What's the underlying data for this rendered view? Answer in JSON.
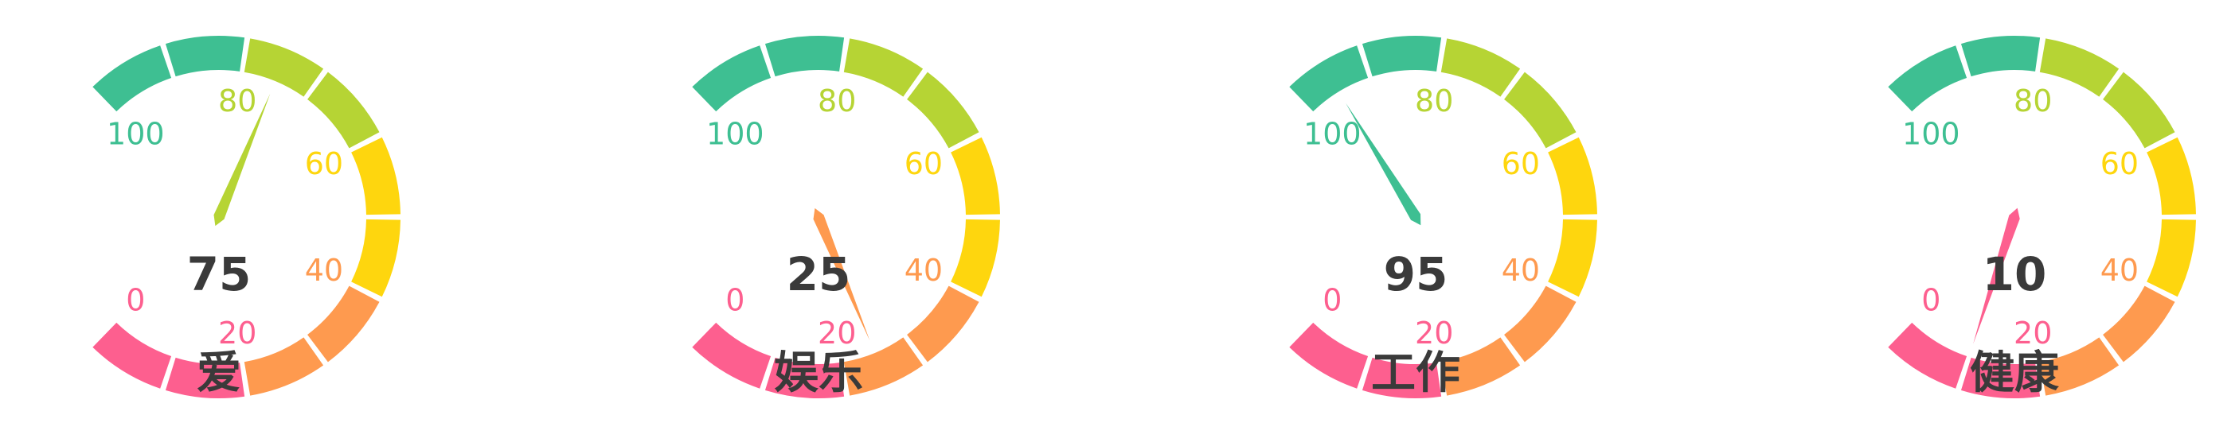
{
  "chart_data": [
    {
      "type": "gauge",
      "label": "爱",
      "value": 75,
      "value_text": "75",
      "range": [
        0,
        100
      ],
      "ticks": [
        "0",
        "20",
        "40",
        "60",
        "80",
        "100"
      ],
      "needle_color": "#b6d434"
    },
    {
      "type": "gauge",
      "label": "娱乐",
      "value": 25,
      "value_text": "25",
      "range": [
        0,
        100
      ],
      "ticks": [
        "0",
        "20",
        "40",
        "60",
        "80",
        "100"
      ],
      "needle_color": "#fe9a4f"
    },
    {
      "type": "gauge",
      "label": "工作",
      "value": 95,
      "value_text": "95",
      "range": [
        0,
        100
      ],
      "ticks": [
        "0",
        "20",
        "40",
        "60",
        "80",
        "100"
      ],
      "needle_color": "#3ebf92"
    },
    {
      "type": "gauge",
      "label": "健康",
      "value": 10,
      "value_text": "10",
      "range": [
        0,
        100
      ],
      "ticks": [
        "0",
        "20",
        "40",
        "60",
        "80",
        "100"
      ],
      "needle_color": "#fd5f8f"
    }
  ],
  "palette": {
    "band_colors": [
      "#fd5f8f",
      "#fe9a4f",
      "#fed60e",
      "#b6d434",
      "#3ebf92"
    ]
  }
}
